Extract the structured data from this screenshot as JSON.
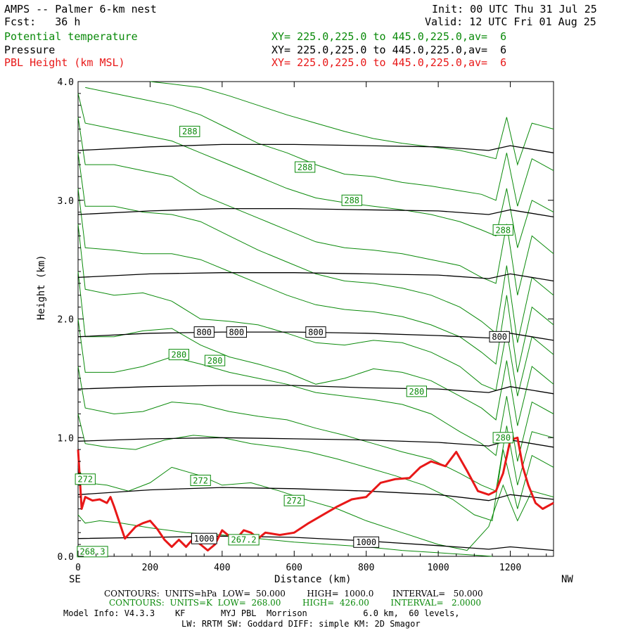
{
  "header": {
    "title": "AMPS -- Palmer 6-km nest",
    "fcst": "Fcst:   36 h",
    "init": "Init: 00 UTC Thu 31 Jul 25",
    "valid": "Valid: 12 UTC Fri 01 Aug 25"
  },
  "fields": [
    {
      "name": "Potential temperature",
      "xy": "XY= 225.0,225.0 to 445.0,225.0,av=  6",
      "color": "#0a8a0a"
    },
    {
      "name": "Pressure",
      "xy": "XY= 225.0,225.0 to 445.0,225.0,av=  6",
      "color": "#000000"
    },
    {
      "name": "PBL Height (km MSL)",
      "xy": "XY= 225.0,225.0 to 445.0,225.0,av=  6",
      "color": "#e81818"
    }
  ],
  "footer": {
    "contours_pressure": "CONTOURS:  UNITS=hPa  LOW=  50.000        HIGH=  1000.0       INTERVAL=   50.000",
    "contours_theta": "CONTOURS:  UNITS=K  LOW=  268.00        HIGH=  426.00        INTERVAL=   2.0000",
    "model_info_1": "Model Info: V4.3.3    KF       MYJ PBL  Morrison           6.0 km,  60 levels,",
    "model_info_2": "LW: RRTM SW: Goddard DIFF: simple KM: 2D Smagor"
  },
  "chart_data": {
    "type": "line",
    "title": "AMPS -- Palmer 6-km nest",
    "xlabel": "Distance (km)",
    "ylabel": "Height (km)",
    "xlim": [
      0,
      1320
    ],
    "ylim": [
      0,
      4.0
    ],
    "x_ticks": [
      0,
      200,
      400,
      600,
      800,
      1000,
      1200
    ],
    "y_ticks": [
      0.0,
      1.0,
      2.0,
      3.0,
      4.0
    ],
    "x_end_labels": {
      "left": "SE",
      "right": "NW"
    },
    "colors": {
      "theta": "#0a8a0a",
      "pressure": "#000000",
      "pbl": "#e81818"
    },
    "pbl_height": {
      "name": "PBL Height (km MSL)",
      "x": [
        0,
        10,
        20,
        40,
        60,
        80,
        90,
        100,
        130,
        160,
        180,
        200,
        220,
        240,
        260,
        280,
        300,
        320,
        340,
        360,
        380,
        400,
        420,
        440,
        460,
        480,
        500,
        520,
        560,
        600,
        640,
        680,
        720,
        760,
        800,
        840,
        880,
        920,
        950,
        980,
        1000,
        1020,
        1050,
        1080,
        1110,
        1140,
        1160,
        1180,
        1200,
        1220,
        1235,
        1250,
        1270,
        1290,
        1320
      ],
      "values": [
        0.9,
        0.4,
        0.5,
        0.47,
        0.48,
        0.45,
        0.5,
        0.42,
        0.15,
        0.25,
        0.28,
        0.3,
        0.23,
        0.14,
        0.08,
        0.14,
        0.08,
        0.15,
        0.1,
        0.05,
        0.1,
        0.22,
        0.17,
        0.15,
        0.22,
        0.2,
        0.15,
        0.2,
        0.18,
        0.2,
        0.28,
        0.35,
        0.42,
        0.48,
        0.5,
        0.62,
        0.65,
        0.66,
        0.75,
        0.8,
        0.78,
        0.76,
        0.88,
        0.72,
        0.55,
        0.52,
        0.55,
        0.7,
        0.98,
        1.0,
        0.75,
        0.6,
        0.45,
        0.4,
        0.45
      ]
    },
    "pressure_contours": [
      {
        "label": "1000",
        "label_positions": [
          [
            350,
            0.15
          ],
          [
            800,
            0.12
          ]
        ],
        "x": [
          0,
          200,
          400,
          600,
          800,
          1000,
          1140,
          1200,
          1320
        ],
        "values": [
          0.15,
          0.16,
          0.17,
          0.16,
          0.13,
          0.09,
          0.06,
          0.08,
          0.05
        ]
      },
      {
        "label": "",
        "label_positions": [],
        "x": [
          0,
          200,
          400,
          600,
          800,
          1000,
          1140,
          1200,
          1320
        ],
        "values": [
          0.52,
          0.56,
          0.58,
          0.57,
          0.55,
          0.52,
          0.47,
          0.52,
          0.48
        ]
      },
      {
        "label": "",
        "label_positions": [],
        "x": [
          0,
          200,
          400,
          600,
          800,
          1000,
          1140,
          1200,
          1320
        ],
        "values": [
          0.97,
          0.99,
          1.0,
          0.99,
          0.98,
          0.96,
          0.93,
          0.98,
          0.92
        ]
      },
      {
        "label": "",
        "label_positions": [],
        "x": [
          0,
          200,
          400,
          600,
          800,
          1000,
          1140,
          1200,
          1320
        ],
        "values": [
          1.41,
          1.43,
          1.44,
          1.44,
          1.42,
          1.41,
          1.38,
          1.43,
          1.37
        ]
      },
      {
        "label": "800",
        "label_positions": [
          [
            350,
            1.89
          ],
          [
            440,
            1.89
          ],
          [
            660,
            1.89
          ],
          [
            1170,
            1.85
          ]
        ],
        "x": [
          0,
          200,
          400,
          600,
          800,
          1000,
          1140,
          1200,
          1320
        ],
        "values": [
          1.85,
          1.88,
          1.89,
          1.89,
          1.88,
          1.86,
          1.84,
          1.88,
          1.82
        ]
      },
      {
        "label": "",
        "label_positions": [],
        "x": [
          0,
          200,
          400,
          600,
          800,
          1000,
          1140,
          1200,
          1320
        ],
        "values": [
          2.35,
          2.38,
          2.39,
          2.39,
          2.38,
          2.37,
          2.34,
          2.38,
          2.32
        ]
      },
      {
        "label": "",
        "label_positions": [],
        "x": [
          0,
          200,
          400,
          600,
          800,
          1000,
          1140,
          1200,
          1320
        ],
        "values": [
          2.88,
          2.91,
          2.93,
          2.93,
          2.92,
          2.91,
          2.88,
          2.92,
          2.86
        ]
      },
      {
        "label": "",
        "label_positions": [],
        "x": [
          0,
          200,
          400,
          600,
          800,
          1000,
          1140,
          1200,
          1320
        ],
        "values": [
          3.42,
          3.45,
          3.47,
          3.47,
          3.46,
          3.45,
          3.42,
          3.46,
          3.4
        ]
      }
    ],
    "theta_contours": [
      {
        "label": "",
        "label_positions": [],
        "x": [
          0,
          20,
          60,
          120,
          200,
          300,
          400,
          500,
          600,
          700,
          800,
          900,
          1000,
          1100,
          1150
        ],
        "values": [
          0.35,
          0.28,
          0.3,
          0.28,
          0.24,
          0.2,
          0.18,
          0.15,
          0.12,
          0.1,
          0.08,
          0.05,
          0.03,
          0.01,
          0.0
        ]
      },
      {
        "label": "272",
        "label_positions": [
          [
            20,
            0.65
          ],
          [
            340,
            0.64
          ],
          [
            600,
            0.47
          ]
        ],
        "x": [
          0,
          20,
          80,
          140,
          200,
          260,
          340,
          400,
          480,
          560,
          640,
          720,
          800,
          900,
          1000,
          1080,
          1140,
          1180,
          1220,
          1260,
          1320
        ],
        "values": [
          0.75,
          0.62,
          0.6,
          0.55,
          0.62,
          0.75,
          0.68,
          0.6,
          0.62,
          0.55,
          0.47,
          0.4,
          0.3,
          0.2,
          0.1,
          0.05,
          0.25,
          0.6,
          0.3,
          0.55,
          0.5
        ]
      },
      {
        "label": "",
        "label_positions": [],
        "x": [
          0,
          20,
          80,
          160,
          240,
          320,
          400,
          480,
          560,
          640,
          720,
          800,
          880,
          960,
          1040,
          1100,
          1150,
          1180,
          1220,
          1260,
          1320
        ],
        "values": [
          1.2,
          0.95,
          0.92,
          0.9,
          0.98,
          1.02,
          1.0,
          0.95,
          0.92,
          0.88,
          0.82,
          0.75,
          0.68,
          0.6,
          0.48,
          0.35,
          0.3,
          0.9,
          0.4,
          0.85,
          0.75
        ]
      },
      {
        "label": "280",
        "label_positions": [
          [
            1180,
            1.0
          ]
        ],
        "x": [
          0,
          20,
          100,
          180,
          260,
          340,
          420,
          500,
          580,
          660,
          740,
          820,
          900,
          980,
          1060,
          1120,
          1160,
          1190,
          1220,
          1260,
          1320
        ],
        "values": [
          1.6,
          1.25,
          1.2,
          1.22,
          1.3,
          1.28,
          1.22,
          1.18,
          1.15,
          1.08,
          1.02,
          0.95,
          0.88,
          0.82,
          0.7,
          0.6,
          0.55,
          1.1,
          0.6,
          1.05,
          1.0
        ]
      },
      {
        "label": "280",
        "label_positions": [
          [
            940,
            1.39
          ]
        ],
        "x": [
          0,
          20,
          100,
          180,
          260,
          340,
          420,
          500,
          580,
          660,
          740,
          820,
          900,
          980,
          1060,
          1120,
          1160,
          1190,
          1220,
          1260,
          1320
        ],
        "values": [
          2.0,
          1.55,
          1.55,
          1.6,
          1.68,
          1.62,
          1.55,
          1.5,
          1.45,
          1.38,
          1.35,
          1.32,
          1.28,
          1.2,
          1.05,
          0.95,
          0.85,
          1.35,
          0.8,
          1.3,
          1.2
        ]
      },
      {
        "label": "280",
        "label_positions": [
          [
            380,
            1.65
          ]
        ],
        "x": [
          0,
          20,
          100,
          180,
          260,
          340,
          420,
          500,
          580,
          660,
          740,
          820,
          900,
          980,
          1060,
          1120,
          1160,
          1190,
          1220,
          1260,
          1320
        ],
        "values": [
          2.4,
          1.85,
          1.85,
          1.9,
          1.92,
          1.78,
          1.68,
          1.62,
          1.55,
          1.45,
          1.5,
          1.58,
          1.55,
          1.48,
          1.35,
          1.25,
          1.15,
          1.65,
          1.1,
          1.6,
          1.45
        ]
      },
      {
        "label": "280",
        "label_positions": [
          [
            280,
            1.7
          ]
        ],
        "x": [
          0,
          20,
          100,
          180,
          260,
          340,
          420,
          500,
          580,
          660,
          740,
          820,
          900,
          980,
          1060,
          1120,
          1160,
          1190,
          1220,
          1260,
          1320
        ],
        "values": [
          2.8,
          2.25,
          2.2,
          2.22,
          2.15,
          2.0,
          1.98,
          1.95,
          1.88,
          1.8,
          1.78,
          1.82,
          1.8,
          1.72,
          1.6,
          1.45,
          1.4,
          1.9,
          1.35,
          1.85,
          1.7
        ]
      },
      {
        "label": "",
        "label_positions": [],
        "x": [
          0,
          20,
          100,
          180,
          260,
          340,
          420,
          500,
          580,
          660,
          740,
          820,
          900,
          980,
          1060,
          1120,
          1160,
          1190,
          1220,
          1260,
          1320
        ],
        "values": [
          3.1,
          2.6,
          2.58,
          2.55,
          2.55,
          2.5,
          2.4,
          2.3,
          2.2,
          2.12,
          2.08,
          2.06,
          2.02,
          1.95,
          1.85,
          1.72,
          1.62,
          2.2,
          1.55,
          2.1,
          1.95
        ]
      },
      {
        "label": "",
        "label_positions": [],
        "x": [
          0,
          20,
          100,
          180,
          260,
          340,
          420,
          500,
          580,
          660,
          740,
          820,
          900,
          980,
          1060,
          1120,
          1160,
          1190,
          1220,
          1260,
          1320
        ],
        "values": [
          3.4,
          2.95,
          2.95,
          2.9,
          2.88,
          2.82,
          2.7,
          2.58,
          2.48,
          2.38,
          2.32,
          2.3,
          2.26,
          2.2,
          2.1,
          1.98,
          1.88,
          2.45,
          1.8,
          2.35,
          2.2
        ]
      },
      {
        "label": "288",
        "label_positions": [
          [
            1180,
            2.75
          ]
        ],
        "x": [
          0,
          20,
          100,
          180,
          260,
          340,
          420,
          500,
          580,
          660,
          740,
          820,
          900,
          980,
          1060,
          1120,
          1160,
          1190,
          1220,
          1260,
          1320
        ],
        "values": [
          3.7,
          3.3,
          3.3,
          3.25,
          3.2,
          3.05,
          2.95,
          2.85,
          2.75,
          2.65,
          2.6,
          2.58,
          2.55,
          2.5,
          2.45,
          2.35,
          2.3,
          2.8,
          2.2,
          2.7,
          2.55
        ]
      },
      {
        "label": "288",
        "label_positions": [
          [
            760,
            3.0
          ]
        ],
        "x": [
          0,
          20,
          100,
          180,
          260,
          340,
          420,
          500,
          580,
          660,
          740,
          820,
          900,
          980,
          1060,
          1120,
          1160,
          1190,
          1220,
          1260,
          1320
        ],
        "values": [
          3.9,
          3.65,
          3.6,
          3.55,
          3.5,
          3.4,
          3.3,
          3.2,
          3.1,
          3.02,
          2.98,
          2.95,
          2.92,
          2.88,
          2.82,
          2.75,
          2.7,
          3.1,
          2.6,
          3.0,
          2.9
        ]
      },
      {
        "label": "288",
        "label_positions": [
          [
            630,
            3.28
          ]
        ],
        "x": [
          20,
          100,
          180,
          260,
          340,
          420,
          500,
          580,
          660,
          740,
          820,
          900,
          980,
          1060,
          1120,
          1160,
          1190,
          1220,
          1260,
          1320
        ],
        "values": [
          3.95,
          3.9,
          3.85,
          3.8,
          3.72,
          3.6,
          3.48,
          3.4,
          3.3,
          3.22,
          3.2,
          3.15,
          3.12,
          3.08,
          3.05,
          3.0,
          3.4,
          2.95,
          3.35,
          3.25
        ]
      },
      {
        "label": "288",
        "label_positions": [
          [
            310,
            3.58
          ]
        ],
        "x": [
          200,
          260,
          340,
          420,
          500,
          580,
          660,
          740,
          820,
          900,
          980,
          1060,
          1120,
          1160,
          1190,
          1220,
          1260,
          1320
        ],
        "values": [
          4.0,
          3.98,
          3.95,
          3.88,
          3.8,
          3.72,
          3.65,
          3.58,
          3.52,
          3.48,
          3.45,
          3.42,
          3.38,
          3.35,
          3.7,
          3.3,
          3.65,
          3.6
        ]
      },
      {
        "label": "268.3",
        "label_positions": [
          [
            40,
            0.04
          ]
        ],
        "x": [
          0,
          20,
          40
        ],
        "values": [
          0.0,
          0.05,
          0.08
        ]
      },
      {
        "label": "267.2",
        "label_positions": [
          [
            460,
            0.14
          ]
        ],
        "x": [
          440,
          460,
          480
        ],
        "values": [
          0.1,
          0.14,
          0.12
        ]
      }
    ]
  }
}
